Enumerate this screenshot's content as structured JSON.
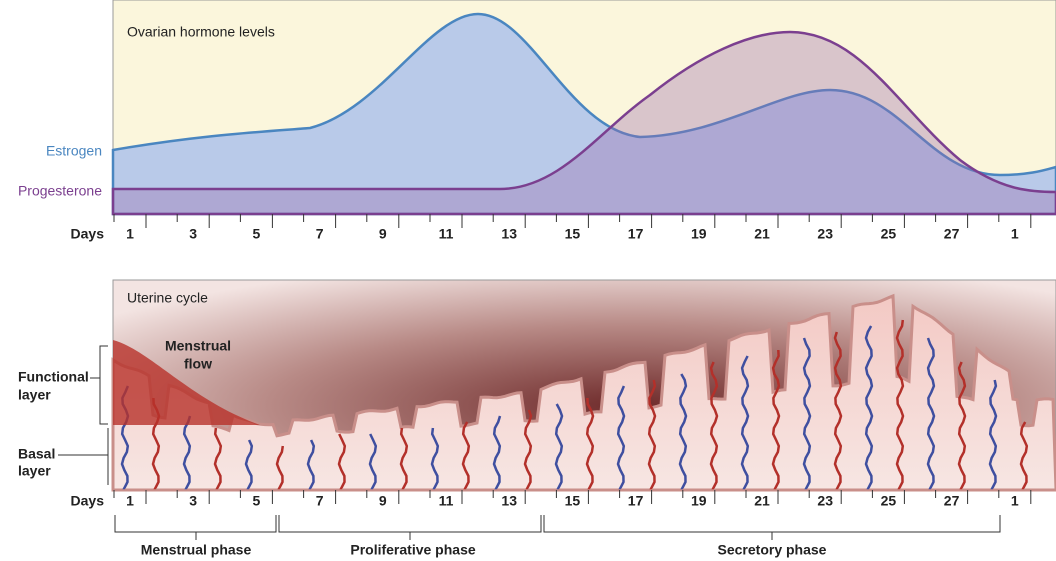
{
  "hormone_chart": {
    "title": "Ovarian hormone levels",
    "estrogen_label": "Estrogen",
    "progesterone_label": "Progesterone",
    "axis_label": "Days",
    "days": [
      "1",
      "3",
      "5",
      "7",
      "9",
      "11",
      "13",
      "15",
      "17",
      "19",
      "21",
      "23",
      "25",
      "27",
      "1"
    ]
  },
  "uterine_chart": {
    "title": "Uterine cycle",
    "flow_label": "Menstrual flow",
    "functional_layer": "Functional layer",
    "basal_layer": "Basal layer",
    "axis_label": "Days",
    "days": [
      "1",
      "3",
      "5",
      "7",
      "9",
      "11",
      "13",
      "15",
      "17",
      "19",
      "21",
      "23",
      "25",
      "27",
      "1"
    ],
    "phases": [
      "Menstrual phase",
      "Proliferative phase",
      "Secretory phase"
    ]
  }
}
